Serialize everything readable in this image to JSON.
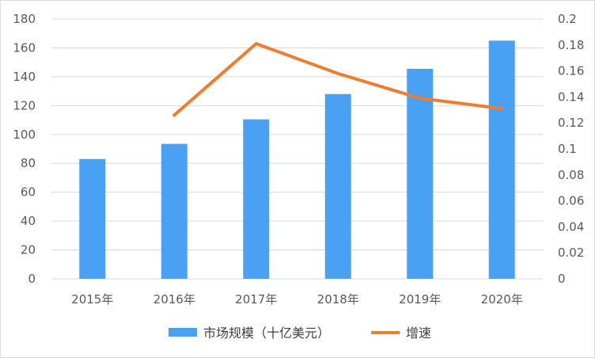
{
  "chart_data": {
    "type": "bar",
    "categories": [
      "2015年",
      "2016年",
      "2017年",
      "2018年",
      "2019年",
      "2020年"
    ],
    "series": [
      {
        "name": "市场规模（十亿美元）",
        "type": "bar",
        "axis": "left",
        "color": "#4aa0f2",
        "values": [
          83,
          93.5,
          110.5,
          128,
          145.5,
          165
        ]
      },
      {
        "name": "增速",
        "type": "line",
        "axis": "right",
        "color": "#ed7d31",
        "values": [
          null,
          0.126,
          0.181,
          0.158,
          0.139,
          0.131
        ]
      }
    ],
    "ylim_left": [
      0,
      180
    ],
    "yticks_left": [
      0,
      20,
      40,
      60,
      80,
      100,
      120,
      140,
      160,
      180
    ],
    "ylim_right": [
      0,
      0.2
    ],
    "yticks_right": [
      "0",
      "0.02",
      "0.04",
      "0.06",
      "0.08",
      "0.1",
      "0.12",
      "0.14",
      "0.16",
      "0.18",
      "0.2"
    ],
    "grid": true,
    "legend_position": "bottom"
  }
}
